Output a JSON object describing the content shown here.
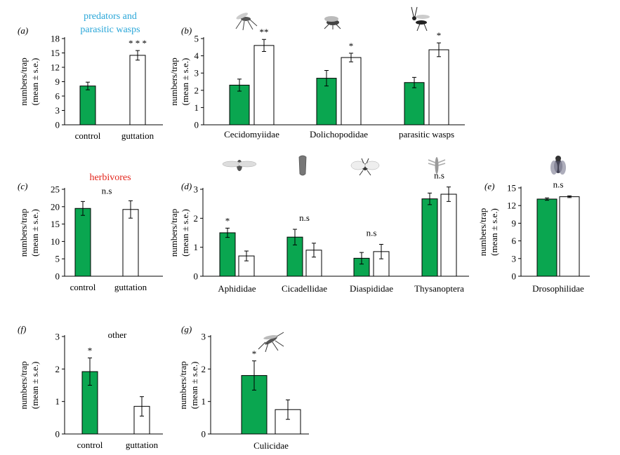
{
  "colors": {
    "control": "#0aa650",
    "guttation": "#ffffff",
    "predators": "#29a6d8",
    "herbivores": "#e2231a"
  },
  "headings": {
    "predators": [
      "predators and",
      "parasitic wasps"
    ],
    "herbivores": "herbivores",
    "other": "other"
  },
  "icons": [
    "gall-midge-icon",
    "long-legged-fly-icon",
    "parasitic-wasp-icon",
    "aphid-icon",
    "leafhopper-icon",
    "armored-scale-icon",
    "thrips-icon",
    "fruit-fly-icon",
    "mosquito-icon"
  ],
  "chart_data": [
    {
      "panel": "(a)",
      "type": "bar",
      "ylabel": [
        "numbers/trap",
        "(mean ± s.e.)"
      ],
      "ylim": [
        0,
        18
      ],
      "yticks": [
        0,
        3,
        6,
        9,
        12,
        15,
        18
      ],
      "categories": [
        "control",
        "guttation"
      ],
      "values": [
        8.1,
        14.5
      ],
      "errors": [
        0.8,
        1.0
      ],
      "signif": [
        "",
        "* * *"
      ],
      "tick_labels": [
        "control",
        "guttation"
      ]
    },
    {
      "panel": "(b)",
      "type": "bar",
      "ylabel": [
        "numbers/trap",
        "(mean ± s.e.)"
      ],
      "ylim": [
        0,
        5
      ],
      "yticks": [
        0,
        1,
        2,
        3,
        4,
        5
      ],
      "categories": [
        "Cecidomyiidae",
        "Dolichopodidae",
        "parasitic wasps"
      ],
      "series": [
        {
          "values": [
            2.3,
            2.7,
            2.45
          ],
          "errors": [
            0.35,
            0.45,
            0.3
          ]
        },
        {
          "values": [
            4.6,
            3.9,
            4.35
          ],
          "errors": [
            0.35,
            0.25,
            0.4
          ]
        }
      ],
      "signif": [
        "**",
        "*",
        "*"
      ]
    },
    {
      "panel": "(c)",
      "type": "bar",
      "ylabel": [
        "numbers/trap",
        "(mean ± s.e.)"
      ],
      "ylim": [
        0,
        25
      ],
      "yticks": [
        0,
        5,
        10,
        15,
        20,
        25
      ],
      "categories": [
        "control",
        "guttation"
      ],
      "values": [
        19.5,
        19.2
      ],
      "errors": [
        2.0,
        2.5
      ],
      "signif_text": "n.s",
      "tick_labels": [
        "control",
        "guttation"
      ]
    },
    {
      "panel": "(d)",
      "type": "bar",
      "ylabel": [
        "numbers/trap",
        "(mean ± s.e.)"
      ],
      "ylim": [
        0,
        3
      ],
      "yticks": [
        0,
        1,
        2,
        3
      ],
      "categories": [
        "Aphididae",
        "Cicadellidae",
        "Diaspididae",
        "Thysanoptera"
      ],
      "series": [
        {
          "values": [
            1.5,
            1.35,
            0.62,
            2.67
          ],
          "errors": [
            0.16,
            0.27,
            0.2,
            0.2
          ]
        },
        {
          "values": [
            0.7,
            0.9,
            0.85,
            2.83
          ],
          "errors": [
            0.17,
            0.24,
            0.25,
            0.25
          ]
        }
      ],
      "signif": [
        "*",
        "n.s",
        "n.s",
        "n.s"
      ]
    },
    {
      "panel": "(e)",
      "type": "bar",
      "ylabel": [
        "numbers/trap",
        "(mean ± s.e.)"
      ],
      "ylim": [
        0,
        15
      ],
      "yticks": [
        0,
        3,
        6,
        9,
        12,
        15
      ],
      "categories": [
        "Drosophilidae"
      ],
      "series": [
        {
          "values": [
            13.1
          ],
          "errors": [
            0.2
          ]
        },
        {
          "values": [
            13.5
          ],
          "errors": [
            0.15
          ]
        }
      ],
      "signif": [
        "n.s"
      ]
    },
    {
      "panel": "(f)",
      "type": "bar",
      "ylabel": [
        "numbers/trap",
        "(mean ± s.e.)"
      ],
      "ylim": [
        0,
        3
      ],
      "yticks": [
        0,
        1,
        2,
        3
      ],
      "categories": [
        "control",
        "guttation"
      ],
      "values": [
        1.92,
        0.85
      ],
      "errors": [
        0.42,
        0.3
      ],
      "signif": [
        "*",
        ""
      ],
      "tick_labels": [
        "control",
        "guttation"
      ]
    },
    {
      "panel": "(g)",
      "type": "bar",
      "ylabel": [
        "numbers/trap",
        "(mean ± s.e.)"
      ],
      "ylim": [
        0,
        3
      ],
      "yticks": [
        0,
        1,
        2,
        3
      ],
      "categories": [
        "Culicidae"
      ],
      "series": [
        {
          "values": [
            1.8
          ],
          "errors": [
            0.45
          ]
        },
        {
          "values": [
            0.75
          ],
          "errors": [
            0.3
          ]
        }
      ],
      "signif": [
        "*"
      ]
    }
  ]
}
